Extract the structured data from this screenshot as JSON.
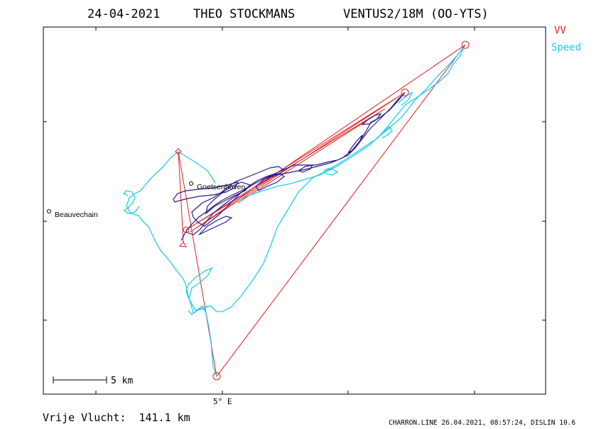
{
  "header": {
    "date": "24-04-2021",
    "pilot": "THEO STOCKMANS",
    "glider": "VENTUS2/18M (OO-YTS)"
  },
  "legend": {
    "vv_label": "VV",
    "speed_label": "Speed",
    "colors": {
      "vv": "#e02020",
      "speed": "#22ccee",
      "track": "#2a1a8c"
    }
  },
  "places": [
    {
      "name": "Goetsenhoven"
    },
    {
      "name": "Beauvechain"
    }
  ],
  "axis": {
    "x_tick_label": "5° E"
  },
  "scale_bar": {
    "label": "5 km"
  },
  "footer": {
    "distance": "Vrije Vlucht:  141.1 km",
    "credit": "CHARRON.LINE 26.04.2021, 08:57:24, DISLIN 10.6"
  }
}
